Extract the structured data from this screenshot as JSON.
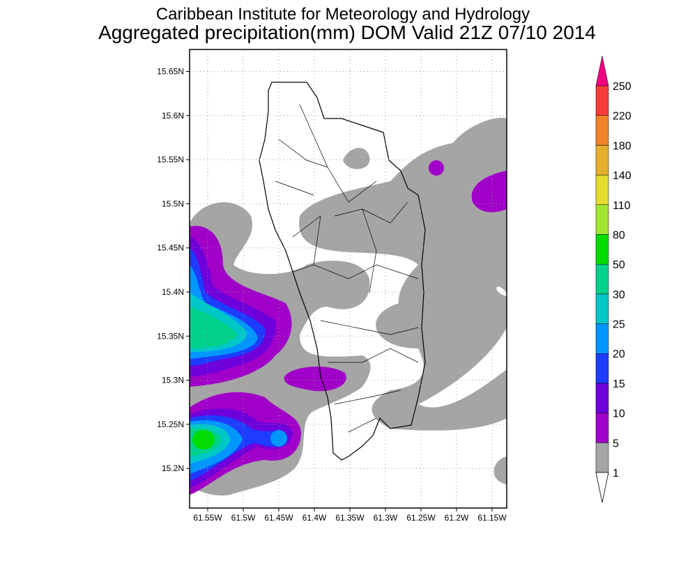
{
  "map": {
    "title": "Caribbean Institute for Meteorology and Hydrology",
    "subtitle": "Aggregated precipitation(mm) DOM Valid 21Z 07/10 2014",
    "lat_labels": [
      "15.65N",
      "15.6N",
      "15.55N",
      "15.5N",
      "15.45N",
      "15.4N",
      "15.35N",
      "15.3N",
      "15.25N",
      "15.2N"
    ],
    "lon_labels": [
      "61.55W",
      "61.5W",
      "61.45W",
      "61.4W",
      "61.35W",
      "61.3W",
      "61.25W",
      "61.2W",
      "61.15W"
    ],
    "colorbar": {
      "levels": [
        "1",
        "5",
        "10",
        "15",
        "20",
        "25",
        "30",
        "50",
        "80",
        "110",
        "140",
        "180",
        "220",
        "250"
      ],
      "colors": [
        "#a5a5a5",
        "#a000c8",
        "#6e00dc",
        "#1e3cff",
        "#0096ff",
        "#00c8c8",
        "#00d28c",
        "#00dc00",
        "#a0e632",
        "#e6dc32",
        "#e6af2d",
        "#f08228",
        "#fa3c3c"
      ],
      "over_color": "#f00082",
      "under_color": "#ffffff"
    }
  }
}
